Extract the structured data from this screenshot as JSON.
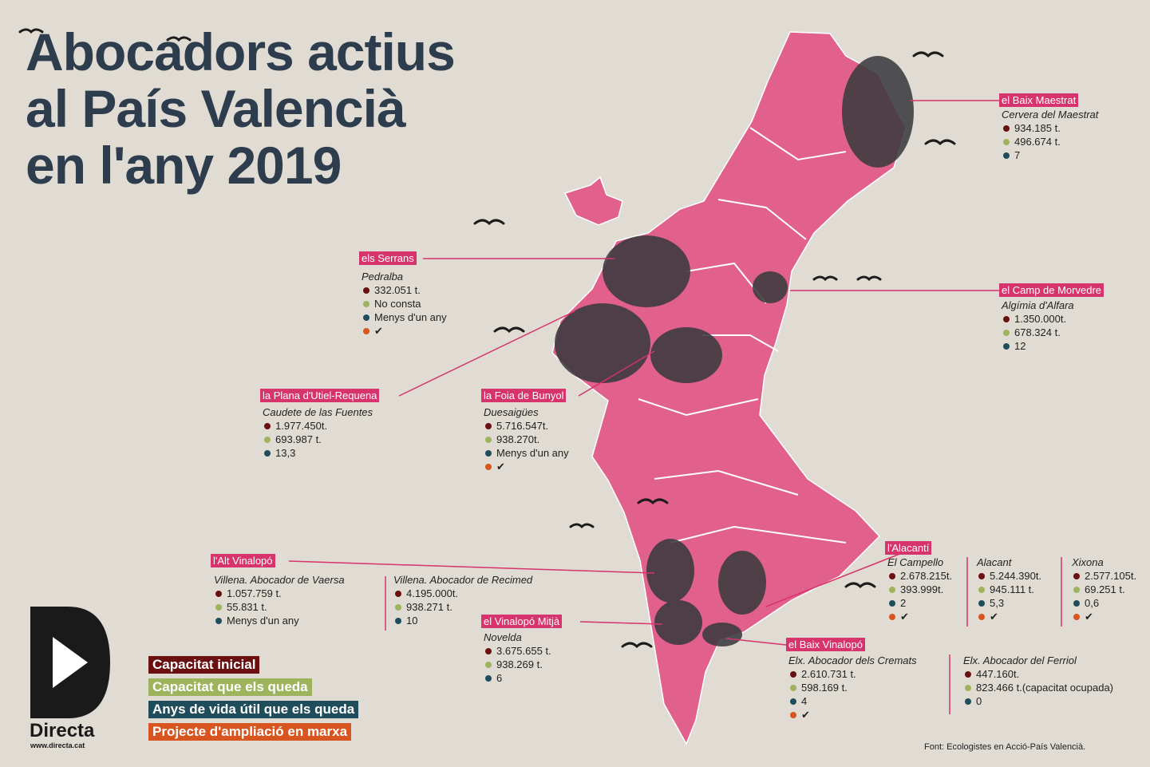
{
  "title": [
    "Abocadors actius",
    "al País Valencià",
    "en l'any 2019"
  ],
  "regions": [
    {
      "name": "el Baix Maestrat",
      "sites": [
        {
          "name": "Cervera del Maestrat",
          "rows": [
            "934.185 t.",
            "496.674 t.",
            "7",
            null
          ]
        }
      ]
    },
    {
      "name": "els Serrans",
      "sites": [
        {
          "name": "Pedralba",
          "rows": [
            "332.051 t.",
            "No consta",
            "Menys d'un any",
            "✔"
          ]
        }
      ]
    },
    {
      "name": "el Camp de Morvedre",
      "sites": [
        {
          "name": "Algímia d'Alfara",
          "rows": [
            "1.350.000t.",
            "678.324 t.",
            "12",
            null
          ]
        }
      ]
    },
    {
      "name": "la Plana d'Utiel-Requena",
      "sites": [
        {
          "name": "Caudete de las Fuentes",
          "rows": [
            "1.977.450t.",
            "693.987 t.",
            "13,3",
            null
          ]
        }
      ]
    },
    {
      "name": "la Foia de Bunyol",
      "sites": [
        {
          "name": "Duesaigües",
          "rows": [
            "5.716.547t.",
            "938.270t.",
            "Menys d'un any",
            "✔"
          ]
        }
      ]
    },
    {
      "name": "l'Alt Vinalopó",
      "sites": [
        {
          "name": "Villena. Abocador de Vaersa",
          "rows": [
            "1.057.759 t.",
            "55.831 t.",
            "Menys d'un any",
            null
          ]
        },
        {
          "name": "Villena. Abocador de Recimed",
          "rows": [
            "4.195.000t.",
            "938.271 t.",
            "10",
            null
          ]
        }
      ]
    },
    {
      "name": "el Vinalopó Mitjà",
      "sites": [
        {
          "name": "Novelda",
          "rows": [
            "3.675.655 t.",
            "938.269 t.",
            "6",
            null
          ]
        }
      ]
    },
    {
      "name": "l'Alacantí",
      "sites": [
        {
          "name": "El Campello",
          "rows": [
            "2.678.215t.",
            "393.999t.",
            "2",
            "✔"
          ]
        },
        {
          "name": "Alacant",
          "rows": [
            "5.244.390t.",
            "945.111 t.",
            "5,3",
            "✔"
          ]
        },
        {
          "name": "Xixona",
          "rows": [
            "2.577.105t.",
            "69.251 t.",
            "0,6",
            "✔"
          ]
        }
      ]
    },
    {
      "name": "el Baix Vinalopó",
      "sites": [
        {
          "name": "Elx. Abocador dels Cremats",
          "rows": [
            "2.610.731 t.",
            "598.169 t.",
            "4",
            "✔"
          ]
        },
        {
          "name": "Elx. Abocador del Ferriol",
          "rows": [
            "447.160t.",
            "823.466 t.(capacitat ocupada)",
            "0",
            null
          ]
        }
      ]
    }
  ],
  "legend": [
    {
      "label": "Capacitat inicial",
      "color": "#6a1010"
    },
    {
      "label": "Capacitat que els queda",
      "color": "#9db35c"
    },
    {
      "label": "Anys de vida útil que els queda",
      "color": "#1f4d5c"
    },
    {
      "label": "Projecte d'ampliació en marxa",
      "color": "#d8551f"
    }
  ],
  "brand": {
    "name": "Directa",
    "url": "www.directa.cat"
  },
  "source": "Font: Ecologistes en Acció-País Valencià."
}
